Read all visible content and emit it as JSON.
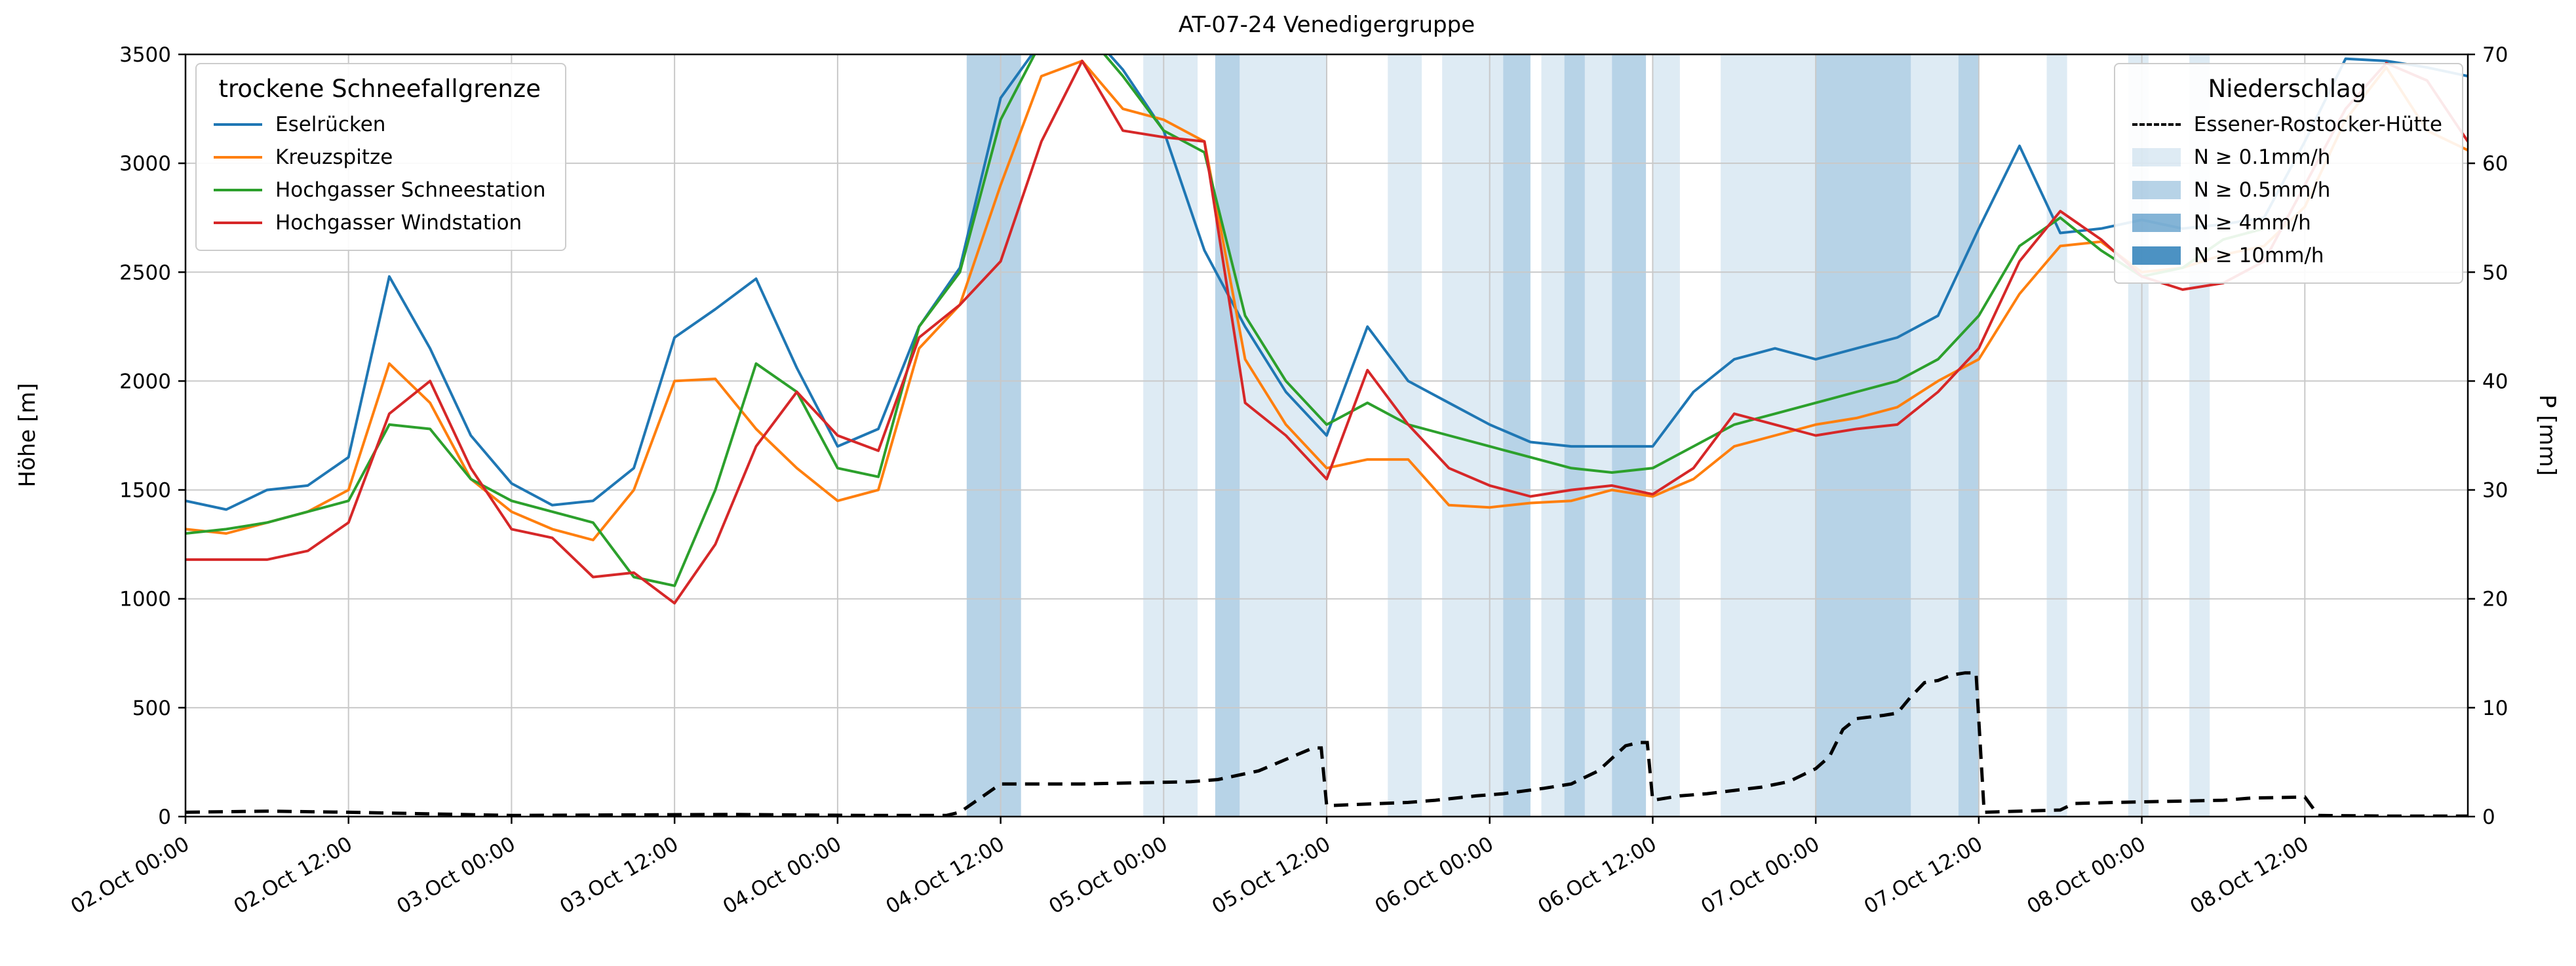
{
  "chart_data": {
    "type": "line",
    "title": "AT-07-24 Venedigergruppe",
    "xlabel": "",
    "ylabel_left": "Höhe [m]",
    "ylabel_right": "P [mm]",
    "ylim_left": [
      0,
      3500
    ],
    "ylim_right": [
      0,
      70
    ],
    "grid": true,
    "x_unit": "hours since 02.Oct 00:00",
    "x_range_hours": [
      0,
      168
    ],
    "x_tick_hours": [
      0,
      12,
      24,
      36,
      48,
      60,
      72,
      84,
      96,
      108,
      120,
      132,
      144,
      156
    ],
    "x_tick_labels": [
      "02.Oct 00:00",
      "02.Oct 12:00",
      "03.Oct 00:00",
      "03.Oct 12:00",
      "04.Oct 00:00",
      "04.Oct 12:00",
      "05.Oct 00:00",
      "05.Oct 12:00",
      "06.Oct 00:00",
      "06.Oct 12:00",
      "07.Oct 00:00",
      "07.Oct 12:00",
      "08.Oct 00:00",
      "08.Oct 12:00"
    ],
    "y_left_ticks": [
      0,
      500,
      1000,
      1500,
      2000,
      2500,
      3000,
      3500
    ],
    "y_right_ticks": [
      0,
      10,
      20,
      30,
      40,
      50,
      60,
      70
    ],
    "legend_snow_title": "trockene Schneefallgrenze",
    "legend_precip_title": "Niederschlag",
    "x_hours": [
      0,
      3,
      6,
      9,
      12,
      15,
      18,
      21,
      24,
      27,
      30,
      33,
      36,
      39,
      42,
      45,
      48,
      51,
      54,
      57,
      60,
      63,
      66,
      69,
      72,
      75,
      78,
      81,
      84,
      87,
      90,
      93,
      96,
      99,
      102,
      105,
      108,
      111,
      114,
      117,
      120,
      123,
      126,
      129,
      132,
      135,
      138,
      141,
      144,
      147,
      150,
      153,
      156,
      159,
      162,
      165,
      168
    ],
    "series": [
      {
        "name": "Eselrücken",
        "color": "#1f77b4",
        "axis": "left",
        "values": [
          1450,
          1410,
          1500,
          1520,
          1650,
          2480,
          2150,
          1750,
          1530,
          1430,
          1450,
          1600,
          2200,
          2330,
          2470,
          2060,
          1700,
          1780,
          2250,
          2520,
          3300,
          3560,
          3640,
          3430,
          3150,
          2600,
          2250,
          1950,
          1750,
          2250,
          2000,
          1900,
          1800,
          1720,
          1700,
          1700,
          1700,
          1950,
          2100,
          2150,
          2100,
          2150,
          2200,
          2300,
          2700,
          3080,
          2680,
          2700,
          2740,
          2700,
          2720,
          2750,
          3100,
          3480,
          3470,
          3440,
          3400
        ]
      },
      {
        "name": "Kreuzspitze",
        "color": "#ff7f0e",
        "axis": "left",
        "values": [
          1320,
          1300,
          1350,
          1400,
          1500,
          2080,
          1900,
          1550,
          1400,
          1320,
          1270,
          1500,
          2000,
          2010,
          1780,
          1600,
          1450,
          1500,
          2150,
          2350,
          2900,
          3400,
          3470,
          3250,
          3200,
          3100,
          2100,
          1800,
          1600,
          1640,
          1640,
          1430,
          1420,
          1440,
          1450,
          1500,
          1470,
          1550,
          1700,
          1750,
          1800,
          1830,
          1880,
          2000,
          2100,
          2400,
          2620,
          2640,
          2500,
          2520,
          2580,
          2620,
          2800,
          3200,
          3440,
          3150,
          3060
        ]
      },
      {
        "name": "Hochgasser Schneestation",
        "color": "#2ca02c",
        "axis": "left",
        "values": [
          1300,
          1320,
          1350,
          1400,
          1450,
          1800,
          1780,
          1550,
          1450,
          1400,
          1350,
          1100,
          1060,
          1500,
          2080,
          1950,
          1600,
          1560,
          2250,
          2500,
          3200,
          3560,
          3620,
          3400,
          3150,
          3050,
          2300,
          2000,
          1800,
          1900,
          1800,
          1750,
          1700,
          1650,
          1600,
          1580,
          1600,
          1700,
          1800,
          1850,
          1900,
          1950,
          2000,
          2100,
          2300,
          2620,
          2750,
          2600,
          2480,
          2520,
          2650,
          2700,
          null,
          null,
          null,
          null,
          null
        ]
      },
      {
        "name": "Hochgasser Windstation",
        "color": "#d62728",
        "axis": "left",
        "values": [
          1180,
          1180,
          1180,
          1220,
          1350,
          1850,
          2000,
          1600,
          1320,
          1280,
          1100,
          1120,
          980,
          1250,
          1700,
          1950,
          1750,
          1680,
          2200,
          2350,
          2550,
          3100,
          3470,
          3150,
          3120,
          3100,
          1900,
          1750,
          1550,
          2050,
          1800,
          1600,
          1520,
          1470,
          1500,
          1520,
          1480,
          1600,
          1850,
          1800,
          1750,
          1780,
          1800,
          1950,
          2150,
          2550,
          2780,
          2650,
          2480,
          2420,
          2450,
          2550,
          2900,
          3250,
          3460,
          3380,
          3100
        ]
      }
    ],
    "precip_series": {
      "name": "Essener-Rostocker-Hütte",
      "color": "#000000",
      "style": "dashed",
      "axis": "right",
      "points": [
        [
          0,
          0.4
        ],
        [
          6,
          0.5
        ],
        [
          12,
          0.4
        ],
        [
          20,
          0.2
        ],
        [
          24,
          0.1
        ],
        [
          40,
          0.2
        ],
        [
          50,
          0.1
        ],
        [
          56,
          0.1
        ],
        [
          57,
          0.4
        ],
        [
          60,
          3.0
        ],
        [
          66,
          3.0
        ],
        [
          70,
          3.1
        ],
        [
          74,
          3.2
        ],
        [
          76,
          3.4
        ],
        [
          79,
          4.2
        ],
        [
          83,
          6.3
        ],
        [
          83.6,
          6.3
        ],
        [
          84,
          1.0
        ],
        [
          86,
          1.1
        ],
        [
          90,
          1.3
        ],
        [
          92,
          1.5
        ],
        [
          95,
          1.9
        ],
        [
          97,
          2.1
        ],
        [
          100,
          2.6
        ],
        [
          102,
          3.0
        ],
        [
          104,
          4.2
        ],
        [
          106,
          6.5
        ],
        [
          107,
          6.8
        ],
        [
          107.6,
          6.8
        ],
        [
          108,
          1.5
        ],
        [
          110,
          1.9
        ],
        [
          112,
          2.1
        ],
        [
          114,
          2.4
        ],
        [
          116,
          2.7
        ],
        [
          118,
          3.2
        ],
        [
          120,
          4.4
        ],
        [
          121,
          5.5
        ],
        [
          122,
          8.0
        ],
        [
          123,
          9.0
        ],
        [
          125,
          9.3
        ],
        [
          126,
          9.5
        ],
        [
          127,
          11.0
        ],
        [
          128,
          12.3
        ],
        [
          129,
          12.5
        ],
        [
          130,
          13.0
        ],
        [
          131,
          13.2
        ],
        [
          131.8,
          13.2
        ],
        [
          132.4,
          0.4
        ],
        [
          135,
          0.5
        ],
        [
          138,
          0.6
        ],
        [
          139,
          1.2
        ],
        [
          142,
          1.3
        ],
        [
          146,
          1.4
        ],
        [
          150,
          1.5
        ],
        [
          152,
          1.7
        ],
        [
          156,
          1.8
        ],
        [
          157,
          0.1
        ],
        [
          162,
          0.05
        ],
        [
          168,
          0.05
        ]
      ]
    },
    "precip_levels": [
      {
        "label": "N ≥ 0.1mm/h",
        "level": 0.1,
        "color": "rgba(31,119,180,0.15)"
      },
      {
        "label": "N ≥ 0.5mm/h",
        "level": 0.5,
        "color": "rgba(31,119,180,0.32)"
      },
      {
        "label": "N ≥ 4mm/h",
        "level": 4,
        "color": "rgba(31,119,180,0.55)"
      },
      {
        "label": "N ≥ 10mm/h",
        "level": 10,
        "color": "rgba(31,119,180,0.8)"
      }
    ],
    "precip_bands": [
      [
        57.5,
        61.5,
        0.5
      ],
      [
        70.5,
        74.5,
        0.1
      ],
      [
        75.8,
        77.6,
        0.5
      ],
      [
        77.6,
        84,
        0.1
      ],
      [
        88.5,
        91,
        0.1
      ],
      [
        92.5,
        97,
        0.1
      ],
      [
        97,
        99,
        0.5
      ],
      [
        99.8,
        101.5,
        0.1
      ],
      [
        101.5,
        103,
        0.5
      ],
      [
        103,
        105,
        0.1
      ],
      [
        105,
        107.5,
        0.5
      ],
      [
        108,
        110,
        0.1
      ],
      [
        113,
        115.5,
        0.1
      ],
      [
        115.5,
        120,
        0.1
      ],
      [
        120,
        127,
        0.5
      ],
      [
        127,
        130.5,
        0.1
      ],
      [
        130.5,
        132,
        0.5
      ],
      [
        137,
        138.5,
        0.1
      ],
      [
        143,
        144.5,
        0.1
      ],
      [
        147.5,
        149,
        0.1
      ]
    ]
  }
}
